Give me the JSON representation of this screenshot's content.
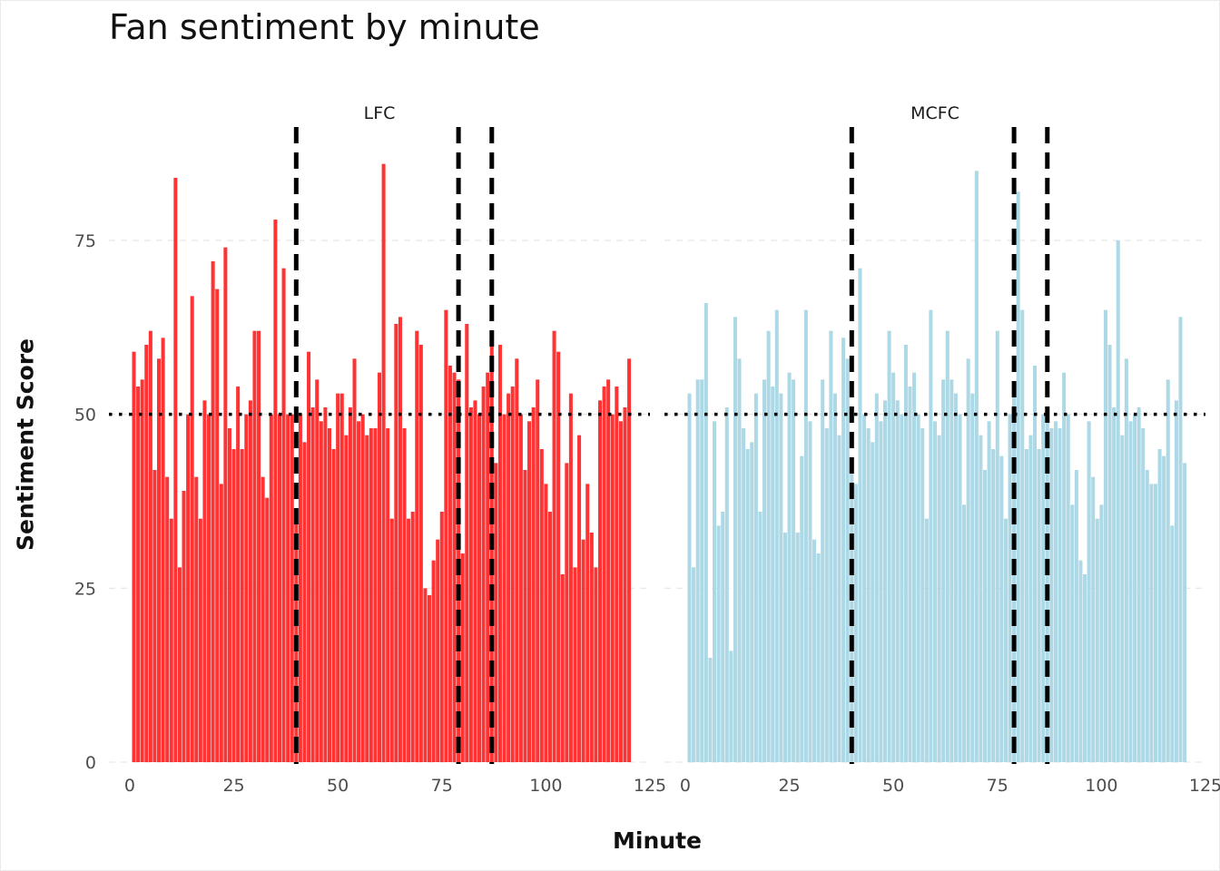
{
  "chart_data": {
    "type": "bar",
    "title": "Fan sentiment by minute",
    "xlabel": "Minute",
    "ylabel": "Sentiment Score",
    "xlim": [
      -5,
      125
    ],
    "ylim": [
      0,
      90
    ],
    "x_ticks": [
      0,
      25,
      50,
      75,
      100,
      125
    ],
    "y_ticks": [
      0,
      25,
      50,
      75
    ],
    "grid": "horizontal dashed",
    "reference_line_y": 50,
    "event_lines_x": [
      40,
      79,
      87
    ],
    "facets": [
      {
        "label": "LFC",
        "color": "#ff3333",
        "minutes_from": 1,
        "values": [
          59,
          54,
          55,
          60,
          62,
          42,
          58,
          61,
          41,
          35,
          84,
          28,
          39,
          50,
          67,
          41,
          35,
          52,
          50,
          72,
          68,
          40,
          74,
          48,
          45,
          54,
          45,
          50,
          52,
          62,
          62,
          41,
          38,
          50,
          78,
          50,
          71,
          50,
          50,
          35,
          50,
          46,
          59,
          51,
          55,
          49,
          51,
          48,
          45,
          53,
          53,
          47,
          51,
          58,
          49,
          50,
          47,
          48,
          48,
          56,
          86,
          48,
          35,
          63,
          64,
          48,
          35,
          36,
          62,
          60,
          25,
          24,
          29,
          32,
          36,
          65,
          57,
          56,
          55,
          30,
          63,
          51,
          52,
          50,
          54,
          56,
          60,
          43,
          60,
          50,
          53,
          54,
          58,
          50,
          42,
          49,
          51,
          55,
          45,
          40,
          36,
          62,
          59,
          27,
          43,
          53,
          28,
          47,
          32,
          40,
          33,
          28,
          52,
          54,
          55,
          50,
          54,
          49,
          51,
          58
        ],
        "bars_from_minute": 0
      },
      {
        "label": "MCFC",
        "color": "#add8e6",
        "minutes_from": 1,
        "values": [
          53,
          28,
          55,
          55,
          66,
          15,
          49,
          34,
          36,
          51,
          16,
          64,
          58,
          48,
          45,
          46,
          53,
          36,
          55,
          62,
          54,
          65,
          53,
          33,
          56,
          55,
          33,
          44,
          65,
          49,
          32,
          30,
          55,
          48,
          62,
          53,
          47,
          61,
          58,
          43,
          40,
          71,
          50,
          48,
          46,
          53,
          49,
          52,
          62,
          56,
          52,
          50,
          60,
          54,
          56,
          50,
          48,
          35,
          65,
          49,
          47,
          55,
          62,
          55,
          53,
          50,
          37,
          58,
          53,
          85,
          47,
          42,
          49,
          45,
          62,
          44,
          35,
          50,
          54,
          82,
          65,
          45,
          47,
          57,
          45,
          50,
          49,
          48,
          49,
          48,
          56,
          50,
          37,
          42,
          29,
          27,
          49,
          41,
          35,
          37,
          65,
          60,
          51,
          75,
          47,
          58,
          49,
          50,
          51,
          48,
          42,
          40,
          40,
          45,
          44,
          55,
          34,
          52,
          64,
          43
        ],
        "bars_from_minute": 0
      }
    ]
  }
}
